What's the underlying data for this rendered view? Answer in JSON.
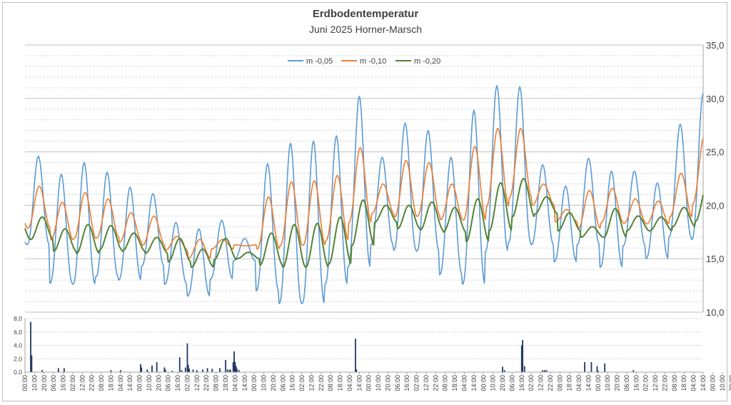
{
  "chart_data": [
    {
      "type": "line",
      "title": "Erdbodentemperatur",
      "subtitle": "Juni 2025 Horner-Marsch",
      "xlabel": "",
      "ylabel": "",
      "ylim": [
        10,
        35
      ],
      "yticks": [
        "10,0",
        "15,0",
        "20,0",
        "25,0",
        "30,0",
        "35,0"
      ],
      "y_axis_side": "right",
      "grid": true,
      "legend": "top-center",
      "series": [
        {
          "name": "m -0,05",
          "color": "#5b9bd5",
          "daily_max": [
            24.6,
            22.9,
            24.0,
            23.1,
            21.7,
            21.1,
            18.4,
            17.8,
            18.6,
            16.9,
            23.9,
            25.8,
            26.0,
            26.5,
            30.2,
            24.5,
            27.7,
            27.0,
            24.5,
            28.9,
            31.2,
            31.1,
            23.8,
            21.8,
            24.4,
            23.2,
            23.2,
            22.1,
            27.6,
            30.5
          ],
          "daily_min": [
            16.3,
            12.7,
            12.6,
            13.3,
            13.0,
            14.3,
            12.6,
            11.5,
            13.1,
            14.8,
            12.0,
            10.8,
            10.8,
            12.6,
            14.2,
            16.3,
            15.8,
            15.7,
            13.5,
            12.6,
            15.7,
            16.5,
            16.3,
            14.7,
            16.3,
            14.2,
            16.2,
            15.0,
            17.0,
            16.8
          ]
        },
        {
          "name": "m -0,10",
          "color": "#ed7d31",
          "daily_max": [
            21.8,
            20.3,
            21.2,
            20.6,
            19.3,
            19.0,
            17.1,
            16.8,
            16.8,
            16.2,
            20.8,
            22.2,
            22.3,
            22.8,
            25.4,
            22.0,
            24.2,
            24.0,
            22.0,
            25.5,
            27.2,
            27.2,
            22.0,
            19.6,
            21.4,
            21.6,
            20.6,
            20.4,
            23.0,
            26.4
          ]
        },
        {
          "name": "m -0,20",
          "color": "#548235",
          "daily_max": [
            18.9,
            17.8,
            18.2,
            18.1,
            17.4,
            17.0,
            16.9,
            15.9,
            16.9,
            15.6,
            17.4,
            18.2,
            18.3,
            18.9,
            20.5,
            20.0,
            20.0,
            20.3,
            19.8,
            20.6,
            22.1,
            22.5,
            20.8,
            19.3,
            18.0,
            19.7,
            19.0,
            18.9,
            19.8,
            21.8
          ],
          "daily_min": [
            16.8,
            15.7,
            15.5,
            15.8,
            15.7,
            15.5,
            14.7,
            14.2,
            14.9,
            15.0,
            14.4,
            14.2,
            14.2,
            14.5,
            16.2,
            18.4,
            17.8,
            17.7,
            17.5,
            16.6,
            17.6,
            18.9,
            19.2,
            17.6,
            17.0,
            17.0,
            17.6,
            17.6,
            18.0,
            18.5
          ]
        }
      ]
    },
    {
      "type": "bar",
      "ylim": [
        0,
        8
      ],
      "yticks": [
        "0,0",
        "2,0",
        "4,0",
        "6,0",
        "8,0"
      ],
      "color": "#1f3864",
      "x_tick_labels": [
        "00:00",
        "10:00",
        "20:00",
        "06:00",
        "16:00",
        "02:00",
        "12:00",
        "22:00",
        "08:00",
        "18:00",
        "04:00",
        "14:00",
        "00:00",
        "10:00",
        "20:00",
        "06:00",
        "16:00",
        "02:00",
        "12:00",
        "22:00",
        "08:00",
        "18:00",
        "04:00",
        "14:00",
        "00:00",
        "10:00",
        "20:00",
        "06:00",
        "16:00",
        "02:00",
        "12:00",
        "22:00",
        "08:00",
        "18:00",
        "04:00",
        "14:00",
        "00:00",
        "10:00",
        "20:00",
        "06:00",
        "16:00",
        "02:00",
        "12:00",
        "22:00",
        "08:00",
        "18:00",
        "04:00",
        "14:00",
        "00:00",
        "10:00",
        "20:00",
        "06:00",
        "16:00",
        "02:00",
        "12:00",
        "22:00",
        "08:00",
        "18:00",
        "04:00",
        "14:00",
        "00:00",
        "10:00",
        "20:00",
        "06:00",
        "16:00",
        "02:00",
        "12:00",
        "22:00",
        "08:00",
        "18:00",
        "04:00",
        "14:00",
        "00:00",
        "10:00",
        "20:00"
      ],
      "bars_hours": [
        [
          6,
          7.5
        ],
        [
          7,
          2.5
        ],
        [
          18,
          0.3
        ],
        [
          35,
          0.6
        ],
        [
          41,
          0.6
        ],
        [
          90,
          0.3
        ],
        [
          100,
          0.3
        ],
        [
          121,
          1.2
        ],
        [
          122,
          0.7
        ],
        [
          128,
          0.4
        ],
        [
          133,
          1.0
        ],
        [
          138,
          1.5
        ],
        [
          146,
          0.7
        ],
        [
          147,
          0.4
        ],
        [
          154,
          0.2
        ],
        [
          162,
          2.2
        ],
        [
          164,
          0.3
        ],
        [
          168,
          0.7
        ],
        [
          170,
          4.3
        ],
        [
          171,
          1.1
        ],
        [
          172,
          0.5
        ],
        [
          176,
          0.4
        ],
        [
          180,
          0.3
        ],
        [
          186,
          0.4
        ],
        [
          191,
          0.6
        ],
        [
          196,
          0.5
        ],
        [
          204,
          0.6
        ],
        [
          210,
          1.8
        ],
        [
          212,
          0.4
        ],
        [
          214,
          0.3
        ],
        [
          215,
          0.4
        ],
        [
          218,
          1.5
        ],
        [
          219,
          3.1
        ],
        [
          220,
          1.5
        ],
        [
          221,
          0.9
        ],
        [
          222,
          0.5
        ],
        [
          224,
          0.3
        ],
        [
          346,
          5.0
        ],
        [
          347,
          0.4
        ],
        [
          500,
          0.8
        ],
        [
          502,
          0.3
        ],
        [
          520,
          4.0
        ],
        [
          521,
          4.8
        ],
        [
          523,
          0.9
        ],
        [
          542,
          0.3
        ],
        [
          544,
          0.3
        ],
        [
          546,
          0.3
        ],
        [
          586,
          1.5
        ],
        [
          593,
          1.5
        ],
        [
          599,
          0.9
        ],
        [
          600,
          0.2
        ],
        [
          607,
          1.3
        ],
        [
          637,
          0.3
        ]
      ]
    }
  ]
}
